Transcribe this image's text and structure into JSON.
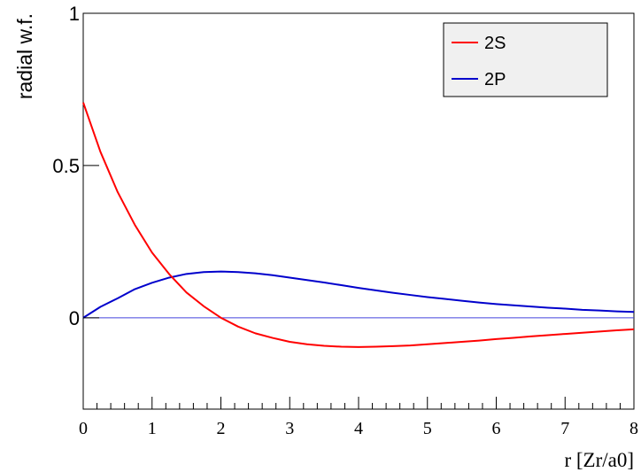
{
  "chart_data": {
    "type": "line",
    "title": "",
    "xlabel": "r [Zr/a0]",
    "ylabel": "radial w.f.",
    "xlim": [
      0,
      8
    ],
    "ylim": [
      -0.3,
      1
    ],
    "xticks": [
      "0",
      "1",
      "2",
      "3",
      "4",
      "5",
      "6",
      "7",
      "8"
    ],
    "yticks": [
      "0",
      "0.5",
      "1"
    ],
    "grid": false,
    "legend_position": "top-right",
    "series": [
      {
        "name": "2S",
        "color": "#ff0000",
        "x": [
          0,
          0.25,
          0.5,
          0.75,
          1,
          1.25,
          1.5,
          1.75,
          2,
          2.25,
          2.5,
          2.75,
          3,
          3.25,
          3.5,
          3.75,
          4,
          4.25,
          4.5,
          4.75,
          5,
          5.25,
          5.5,
          5.75,
          6,
          6.25,
          6.5,
          6.75,
          7,
          7.25,
          7.5,
          7.75,
          8
        ],
        "values": [
          0.707,
          0.545,
          0.413,
          0.305,
          0.214,
          0.143,
          0.083,
          0.038,
          0.0,
          -0.029,
          -0.051,
          -0.066,
          -0.079,
          -0.087,
          -0.092,
          -0.095,
          -0.096,
          -0.095,
          -0.093,
          -0.091,
          -0.087,
          -0.083,
          -0.079,
          -0.075,
          -0.07,
          -0.066,
          -0.061,
          -0.057,
          -0.053,
          -0.049,
          -0.045,
          -0.041,
          -0.038
        ]
      },
      {
        "name": "2P",
        "color": "#0000cc",
        "x": [
          0,
          0.25,
          0.5,
          0.75,
          1,
          1.25,
          1.5,
          1.75,
          2,
          2.25,
          2.5,
          2.75,
          3,
          3.25,
          3.5,
          3.75,
          4,
          4.25,
          4.5,
          4.75,
          5,
          5.25,
          5.5,
          5.75,
          6,
          6.25,
          6.5,
          6.75,
          7,
          7.25,
          7.5,
          7.75,
          8
        ],
        "values": [
          0,
          0.036,
          0.064,
          0.094,
          0.115,
          0.132,
          0.144,
          0.15,
          0.152,
          0.15,
          0.146,
          0.14,
          0.132,
          0.124,
          0.116,
          0.107,
          0.098,
          0.09,
          0.082,
          0.075,
          0.068,
          0.062,
          0.056,
          0.05,
          0.045,
          0.041,
          0.037,
          0.033,
          0.03,
          0.026,
          0.024,
          0.021,
          0.019
        ]
      },
      {
        "name": "",
        "color": "#4444dd",
        "x": [
          0,
          8
        ],
        "values": [
          0,
          0
        ]
      }
    ]
  }
}
